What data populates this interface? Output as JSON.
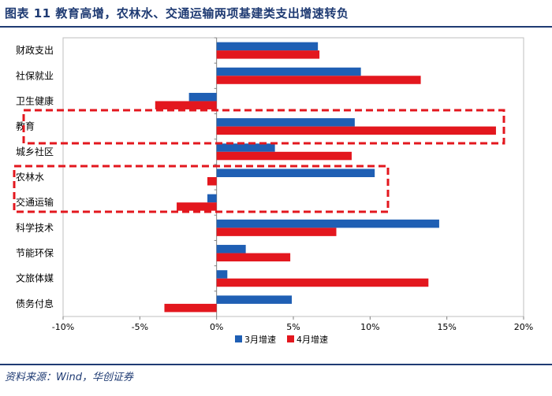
{
  "header": {
    "title": "图表 11    教育高增，农林水、交通运输两项基建类支出增速转负"
  },
  "footer": {
    "source": "资料来源：Wind，华创证券"
  },
  "colors": {
    "series_march": "#1f5fb4",
    "series_april": "#e3171e",
    "title": "#1f3b73",
    "highlight": "#e3171e"
  },
  "chart_data": {
    "type": "bar",
    "orientation": "horizontal",
    "categories": [
      "财政支出",
      "社保就业",
      "卫生健康",
      "教育",
      "城乡社区",
      "农林水",
      "交通运输",
      "科学技术",
      "节能环保",
      "文旅体媒",
      "债务付息"
    ],
    "series": [
      {
        "name": "3月增速",
        "values": [
          6.6,
          9.4,
          -1.8,
          9.0,
          3.8,
          10.3,
          -0.6,
          14.5,
          1.9,
          0.7,
          4.9
        ]
      },
      {
        "name": "4月增速",
        "values": [
          6.7,
          13.3,
          -4.0,
          18.2,
          8.8,
          -0.6,
          -2.6,
          7.8,
          4.8,
          13.8,
          -3.4
        ]
      }
    ],
    "xlim": [
      -10,
      20
    ],
    "xticks": [
      -10,
      -5,
      0,
      5,
      10,
      15,
      20
    ],
    "xtick_labels": [
      "-10%",
      "-5%",
      "0%",
      "5%",
      "10%",
      "15%",
      "20%"
    ],
    "xlabel": "",
    "ylabel": "",
    "grid": false,
    "legend_position": "bottom-center",
    "highlights": [
      {
        "categories": [
          "教育"
        ]
      },
      {
        "categories": [
          "农林水",
          "交通运输"
        ]
      }
    ]
  }
}
